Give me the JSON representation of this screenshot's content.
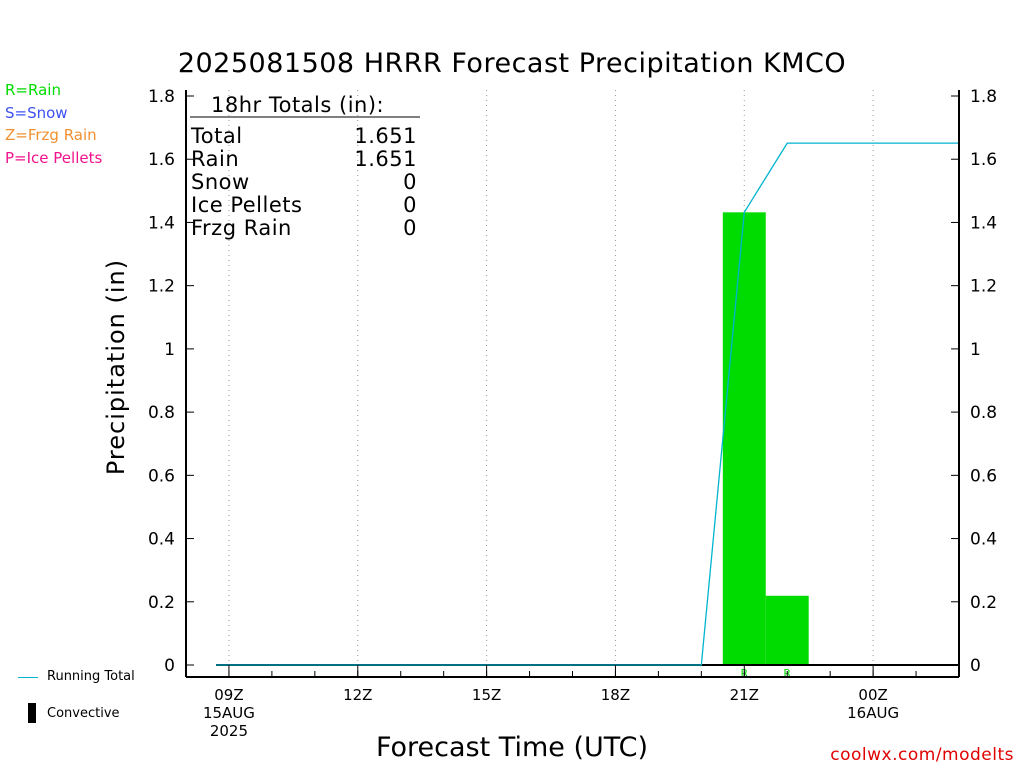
{
  "chart_data": {
    "type": "bar",
    "title": "2025081508 HRRR Forecast Precipitation KMCO",
    "xlabel": "Forecast Time (UTC)",
    "ylabel": "Precipitation (in)",
    "ylim": [
      0,
      1.8
    ],
    "yticks": [
      "0",
      "0.2",
      "0.4",
      "0.6",
      "0.8",
      "1",
      "1.2",
      "1.4",
      "1.6",
      "1.8"
    ],
    "xlim_hours": [
      -1,
      17
    ],
    "xticks": [
      {
        "hour": 0,
        "lines": [
          "09Z",
          "15AUG",
          "2025"
        ]
      },
      {
        "hour": 3,
        "lines": [
          "12Z"
        ]
      },
      {
        "hour": 6,
        "lines": [
          "15Z"
        ]
      },
      {
        "hour": 9,
        "lines": [
          "18Z"
        ]
      },
      {
        "hour": 12,
        "lines": [
          "21Z"
        ]
      },
      {
        "hour": 15,
        "lines": [
          "00Z",
          "16AUG"
        ]
      }
    ],
    "bars": [
      {
        "start": 11.5,
        "end": 12.5,
        "value": 1.432,
        "type": "R",
        "color": "#00dc00"
      },
      {
        "start": 12.5,
        "end": 13.5,
        "value": 0.219,
        "type": "R",
        "color": "#00dc00"
      }
    ],
    "running_total": {
      "name": "Running Total",
      "color": "#00b4d0",
      "hours": [
        -0.3,
        11,
        12,
        13,
        14,
        15,
        16,
        17
      ],
      "values": [
        0,
        0,
        1.432,
        1.651,
        1.651,
        1.651,
        1.651,
        1.651
      ]
    },
    "zero_line_hours": [
      -0.3,
      17
    ],
    "totals": {
      "header": "18hr Totals (in):",
      "rows": [
        {
          "label": "Total",
          "value": "1.651"
        },
        {
          "label": "Rain",
          "value": "1.651"
        },
        {
          "label": "Snow",
          "value": "0"
        },
        {
          "label": "Ice Pellets",
          "value": "0"
        },
        {
          "label": "Frzg Rain",
          "value": "0"
        }
      ]
    },
    "grid": "vertical-dotted"
  },
  "legend": {
    "types": [
      {
        "text": "R=Rain",
        "color": "#00dc00"
      },
      {
        "text": "S=Snow",
        "color": "#3c50f0"
      },
      {
        "text": "Z=Frzg Rain",
        "color": "#f09030"
      },
      {
        "text": "P=Ice Pellets",
        "color": "#f0148c"
      }
    ],
    "running_total": "Running Total",
    "convective": "Convective"
  },
  "credit": "coolwx.com/modelts"
}
